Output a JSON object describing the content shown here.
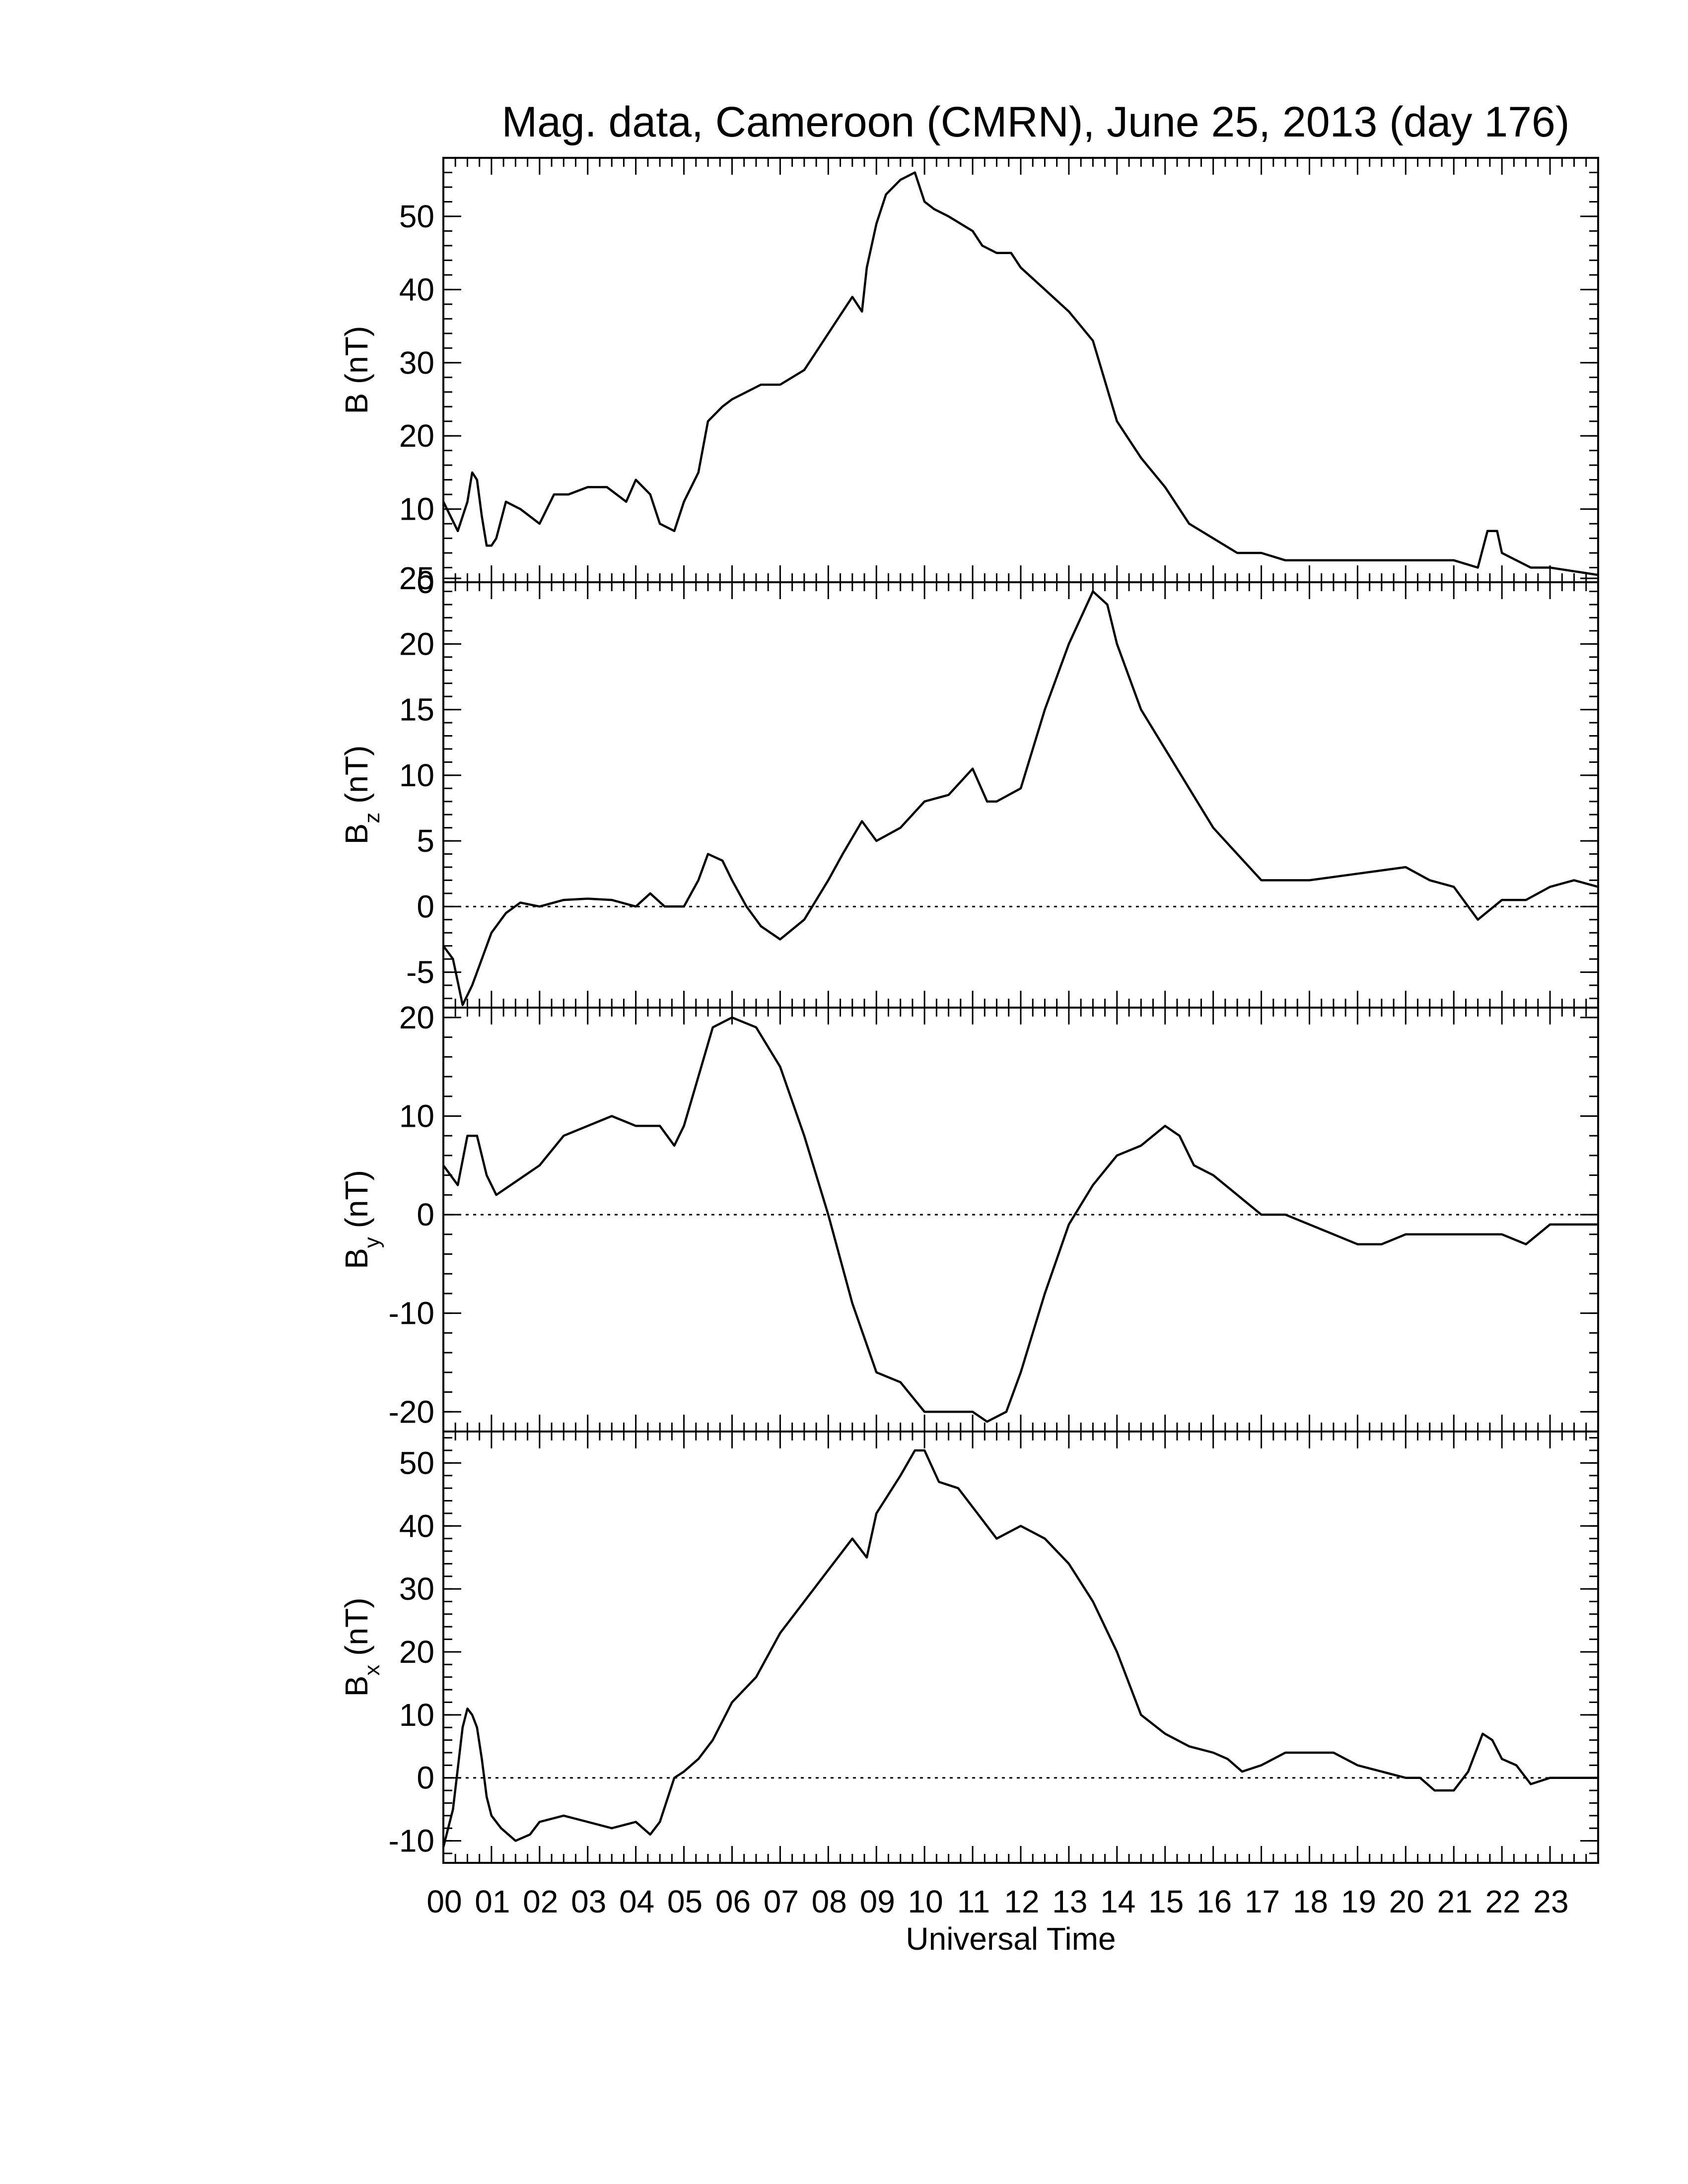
{
  "chart_data": {
    "type": "line",
    "title": "Mag. data, Cameroon (CMRN), June 25, 2013 (day 176)",
    "xlabel": "Universal Time",
    "x_tick_labels": [
      "00",
      "01",
      "02",
      "03",
      "04",
      "05",
      "06",
      "07",
      "08",
      "09",
      "10",
      "11",
      "12",
      "13",
      "14",
      "15",
      "16",
      "17",
      "18",
      "19",
      "20",
      "21",
      "22",
      "23"
    ],
    "xlim": [
      0,
      24
    ],
    "panels": [
      {
        "ylabel_main": "B",
        "ylabel_sub": "",
        "ylabel_unit": "(nT)",
        "ylim": [
          0,
          58
        ],
        "yticks": [
          0,
          10,
          20,
          30,
          40,
          50
        ],
        "ytick_labels": [
          "0",
          "10",
          "20",
          "30",
          "40",
          "50"
        ],
        "zero_line": false,
        "series": [
          {
            "x": [
              0,
              0.3,
              0.5,
              0.6,
              0.7,
              0.8,
              0.9,
              1.0,
              1.1,
              1.3,
              1.6,
              1.8,
              2.0,
              2.3,
              2.6,
              3.0,
              3.4,
              3.6,
              3.8,
              4.0,
              4.3,
              4.5,
              4.8,
              5.0,
              5.3,
              5.5,
              5.8,
              6.0,
              6.3,
              6.6,
              7.0,
              7.5,
              7.8,
              8.2,
              8.5,
              8.7,
              8.8,
              9.0,
              9.2,
              9.5,
              9.8,
              9.9,
              10.0,
              10.2,
              10.5,
              11.0,
              11.2,
              11.5,
              11.8,
              12.0,
              12.5,
              13.0,
              13.5,
              14.0,
              14.5,
              15.0,
              15.5,
              16.0,
              16.5,
              17.0,
              17.5,
              18.0,
              19.0,
              20.0,
              21.0,
              21.5,
              21.7,
              21.9,
              22.0,
              22.3,
              22.6,
              23.0,
              24.0
            ],
            "y": [
              11,
              7,
              11,
              15,
              14,
              9,
              5,
              5,
              6,
              11,
              10,
              9,
              8,
              12,
              12,
              13,
              13,
              12,
              11,
              14,
              12,
              8,
              7,
              11,
              15,
              22,
              24,
              25,
              26,
              27,
              27,
              29,
              32,
              36,
              39,
              37,
              43,
              49,
              53,
              55,
              56,
              54,
              52,
              51,
              50,
              48,
              46,
              45,
              45,
              43,
              40,
              37,
              33,
              22,
              17,
              13,
              8,
              6,
              4,
              4,
              3,
              3,
              3,
              3,
              3,
              2,
              7,
              7,
              4,
              3,
              2,
              2,
              1
            ]
          }
        ]
      },
      {
        "ylabel_main": "B",
        "ylabel_sub": "z",
        "ylabel_unit": "(nT)",
        "ylim": [
          -7.7,
          24.7
        ],
        "yticks": [
          -5,
          0,
          5,
          10,
          15,
          20,
          25
        ],
        "ytick_labels": [
          "-5",
          "0",
          "5",
          "10",
          "15",
          "20",
          "25"
        ],
        "zero_line": true,
        "series": [
          {
            "x": [
              0,
              0.2,
              0.4,
              0.6,
              0.8,
              1.0,
              1.3,
              1.6,
              2.0,
              2.5,
              3.0,
              3.5,
              4.0,
              4.3,
              4.6,
              5.0,
              5.3,
              5.5,
              5.8,
              6.0,
              6.3,
              6.6,
              7.0,
              7.5,
              8.0,
              8.3,
              8.7,
              9.0,
              9.5,
              10.0,
              10.5,
              11.0,
              11.3,
              11.5,
              12.0,
              12.5,
              13.0,
              13.5,
              13.8,
              14.0,
              14.5,
              15.0,
              15.5,
              16.0,
              16.5,
              17.0,
              17.5,
              18.0,
              19.0,
              20.0,
              20.5,
              21.0,
              21.5,
              22.0,
              22.5,
              23.0,
              23.5,
              24.0
            ],
            "y": [
              -3,
              -4,
              -7.5,
              -6,
              -4,
              -2,
              -0.5,
              0.3,
              0,
              0.5,
              0.6,
              0.5,
              0,
              1.0,
              0,
              0,
              2,
              4,
              3.5,
              2,
              0,
              -1.5,
              -2.5,
              -1,
              2,
              4,
              6.5,
              5,
              6,
              8,
              8.5,
              10.5,
              8,
              8,
              9,
              15,
              20,
              24,
              23,
              20,
              15,
              12,
              9,
              6,
              4,
              2,
              2,
              2,
              2.5,
              3,
              2,
              1.5,
              -1,
              0.5,
              0.5,
              1.5,
              2,
              1.5
            ]
          }
        ]
      },
      {
        "ylabel_main": "B",
        "ylabel_sub": "y",
        "ylabel_unit": "(nT)",
        "ylim": [
          -22,
          21
        ],
        "yticks": [
          -20,
          -10,
          0,
          10,
          20
        ],
        "ytick_labels": [
          "-20",
          "-10",
          "0",
          "10",
          "20"
        ],
        "zero_line": true,
        "series": [
          {
            "x": [
              0,
              0.3,
              0.5,
              0.7,
              0.9,
              1.1,
              1.4,
              1.7,
              2.0,
              2.5,
              3.0,
              3.5,
              4.0,
              4.5,
              4.8,
              5.0,
              5.3,
              5.6,
              6.0,
              6.5,
              7.0,
              7.5,
              8.0,
              8.5,
              9.0,
              9.5,
              10.0,
              10.5,
              11.0,
              11.3,
              11.7,
              12.0,
              12.5,
              13.0,
              13.5,
              14.0,
              14.5,
              15.0,
              15.3,
              15.6,
              16.0,
              16.5,
              17.0,
              17.5,
              18.0,
              18.5,
              19.0,
              19.5,
              20.0,
              20.5,
              21.0,
              21.5,
              22.0,
              22.5,
              23.0,
              23.5,
              24.0
            ],
            "y": [
              5,
              3,
              8,
              8,
              4,
              2,
              3,
              4,
              5,
              8,
              9,
              10,
              9,
              9,
              7,
              9,
              14,
              19,
              20,
              19,
              15,
              8,
              0,
              -9,
              -16,
              -17,
              -20,
              -20,
              -20,
              -21,
              -20,
              -16,
              -8,
              -1,
              3,
              6,
              7,
              9,
              8,
              5,
              4,
              2,
              0,
              0,
              -1,
              -2,
              -3,
              -3,
              -2,
              -2,
              -2,
              -2,
              -2,
              -3,
              -1,
              -1,
              -1
            ]
          }
        ]
      },
      {
        "ylabel_main": "B",
        "ylabel_sub": "x",
        "ylabel_unit": "(nT)",
        "ylim": [
          -13.5,
          55
        ],
        "yticks": [
          -10,
          0,
          10,
          20,
          30,
          40,
          50
        ],
        "ytick_labels": [
          "-10",
          "0",
          "10",
          "20",
          "30",
          "40",
          "50"
        ],
        "zero_line": true,
        "series": [
          {
            "x": [
              0,
              0.2,
              0.4,
              0.5,
              0.6,
              0.7,
              0.8,
              0.9,
              1.0,
              1.2,
              1.5,
              1.8,
              2.0,
              2.5,
              3.0,
              3.5,
              4.0,
              4.3,
              4.5,
              4.8,
              5.0,
              5.3,
              5.6,
              6.0,
              6.5,
              7.0,
              7.5,
              8.0,
              8.5,
              8.8,
              9.0,
              9.5,
              9.8,
              10.0,
              10.3,
              10.7,
              11.0,
              11.5,
              12.0,
              12.5,
              13.0,
              13.5,
              14.0,
              14.5,
              15.0,
              15.5,
              16.0,
              16.3,
              16.6,
              17.0,
              17.5,
              18.0,
              18.5,
              19.0,
              19.5,
              20.0,
              20.3,
              20.6,
              21.0,
              21.3,
              21.6,
              21.8,
              22.0,
              22.3,
              22.6,
              23.0,
              23.5,
              24.0
            ],
            "y": [
              -11,
              -5,
              8,
              11,
              10,
              8,
              3,
              -3,
              -6,
              -8,
              -10,
              -9,
              -7,
              -6,
              -7,
              -8,
              -7,
              -9,
              -7,
              0,
              1,
              3,
              6,
              12,
              16,
              23,
              28,
              33,
              38,
              35,
              42,
              48,
              52,
              52,
              47,
              46,
              43,
              38,
              40,
              38,
              34,
              28,
              20,
              10,
              7,
              5,
              4,
              3,
              1,
              2,
              4,
              4,
              4,
              2,
              1,
              0,
              0,
              -2,
              -2,
              1,
              7,
              6,
              3,
              2,
              -1,
              0,
              0,
              0
            ]
          }
        ]
      }
    ]
  }
}
